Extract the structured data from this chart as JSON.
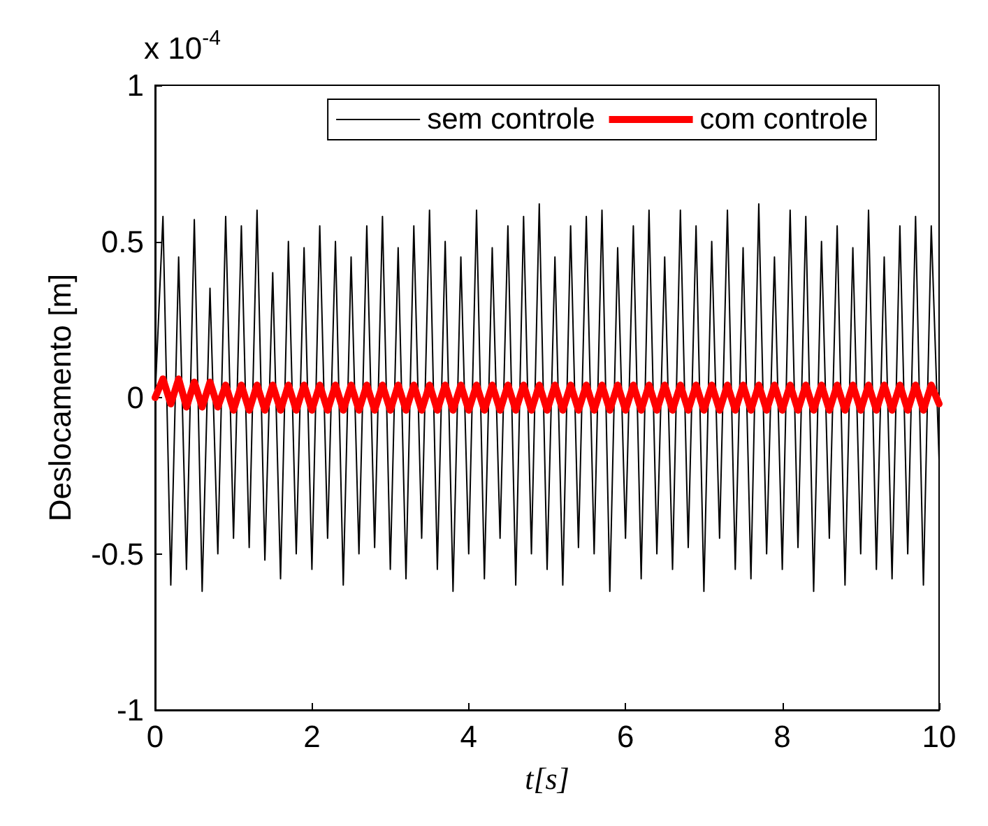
{
  "chart_data": {
    "type": "line",
    "xlabel": "t[s]",
    "ylabel": "Deslocamento [m]",
    "annotations": [
      "x 10$^{-4}$"
    ],
    "x": [
      0,
      0.1,
      0.2,
      0.3,
      0.4,
      0.5,
      0.6,
      0.7,
      0.8,
      0.9,
      1,
      1.1,
      1.2,
      1.3,
      1.4,
      1.5,
      1.6,
      1.7,
      1.8,
      1.9,
      2,
      2.1,
      2.2,
      2.3,
      2.4,
      2.5,
      2.6,
      2.7,
      2.8,
      2.9,
      3,
      3.1,
      3.2,
      3.3,
      3.4,
      3.5,
      3.6,
      3.7,
      3.8,
      3.9,
      4,
      4.1,
      4.2,
      4.3,
      4.4,
      4.5,
      4.6,
      4.7,
      4.8,
      4.9,
      5,
      5.1,
      5.2,
      5.3,
      5.4,
      5.5,
      5.6,
      5.7,
      5.8,
      5.9,
      6,
      6.1,
      6.2,
      6.3,
      6.4,
      6.5,
      6.6,
      6.7,
      6.8,
      6.9,
      7,
      7.1,
      7.2,
      7.3,
      7.4,
      7.5,
      7.6,
      7.7,
      7.8,
      7.9,
      8,
      8.1,
      8.2,
      8.3,
      8.4,
      8.5,
      8.6,
      8.7,
      8.8,
      8.9,
      9,
      9.1,
      9.2,
      9.3,
      9.4,
      9.5,
      9.6,
      9.7,
      9.8,
      9.9,
      10
    ],
    "series": [
      {
        "name": "sem controle",
        "color": "#000000",
        "values": [
          0,
          0.58,
          -0.6,
          0.45,
          -0.55,
          0.57,
          -0.62,
          0.35,
          -0.5,
          0.58,
          -0.45,
          0.55,
          -0.48,
          0.6,
          -0.52,
          0.4,
          -0.58,
          0.5,
          -0.5,
          0.48,
          -0.55,
          0.55,
          -0.45,
          0.5,
          -0.6,
          0.45,
          -0.5,
          0.55,
          -0.48,
          0.58,
          -0.55,
          0.48,
          -0.58,
          0.55,
          -0.45,
          0.6,
          -0.55,
          0.5,
          -0.62,
          0.45,
          -0.5,
          0.6,
          -0.58,
          0.48,
          -0.45,
          0.55,
          -0.6,
          0.58,
          -0.5,
          0.62,
          -0.55,
          0.45,
          -0.6,
          0.55,
          -0.48,
          0.58,
          -0.5,
          0.6,
          -0.62,
          0.48,
          -0.45,
          0.55,
          -0.58,
          0.6,
          -0.5,
          0.45,
          -0.55,
          0.6,
          -0.48,
          0.55,
          -0.62,
          0.5,
          -0.45,
          0.6,
          -0.55,
          0.48,
          -0.58,
          0.62,
          -0.5,
          0.45,
          -0.55,
          0.6,
          -0.48,
          0.58,
          -0.62,
          0.5,
          -0.45,
          0.55,
          -0.6,
          0.48,
          -0.5,
          0.6,
          -0.55,
          0.45,
          -0.58,
          0.55,
          -0.5,
          0.58,
          -0.6,
          0.55,
          -0.2
        ]
      },
      {
        "name": "com controle",
        "color": "#ff0000",
        "values": [
          0,
          0.06,
          -0.02,
          0.06,
          -0.03,
          0.05,
          -0.03,
          0.05,
          -0.03,
          0.04,
          -0.04,
          0.04,
          -0.04,
          0.04,
          -0.04,
          0.04,
          -0.04,
          0.04,
          -0.04,
          0.04,
          -0.04,
          0.04,
          -0.04,
          0.04,
          -0.04,
          0.04,
          -0.04,
          0.04,
          -0.04,
          0.04,
          -0.04,
          0.04,
          -0.04,
          0.04,
          -0.04,
          0.04,
          -0.04,
          0.04,
          -0.04,
          0.04,
          -0.04,
          0.04,
          -0.04,
          0.04,
          -0.04,
          0.04,
          -0.04,
          0.04,
          -0.04,
          0.04,
          -0.04,
          0.04,
          -0.04,
          0.04,
          -0.04,
          0.04,
          -0.04,
          0.04,
          -0.04,
          0.04,
          -0.04,
          0.04,
          -0.04,
          0.04,
          -0.04,
          0.04,
          -0.04,
          0.04,
          -0.04,
          0.04,
          -0.04,
          0.04,
          -0.04,
          0.04,
          -0.04,
          0.04,
          -0.04,
          0.04,
          -0.04,
          0.04,
          -0.04,
          0.04,
          -0.04,
          0.04,
          -0.04,
          0.04,
          -0.04,
          0.04,
          -0.04,
          0.04,
          -0.04,
          0.04,
          -0.04,
          0.04,
          -0.04,
          0.04,
          -0.04,
          0.04,
          -0.04,
          0.04,
          -0.02
        ]
      }
    ],
    "xlim": [
      0,
      10
    ],
    "xticks": [
      0,
      2,
      4,
      6,
      8,
      10
    ],
    "ylim": [
      -1,
      1
    ],
    "yticks": [
      -1,
      -0.5,
      0,
      0.5,
      1
    ],
    "grid": false,
    "legend": "top right",
    "marker": "none",
    "line_style": "solid"
  }
}
